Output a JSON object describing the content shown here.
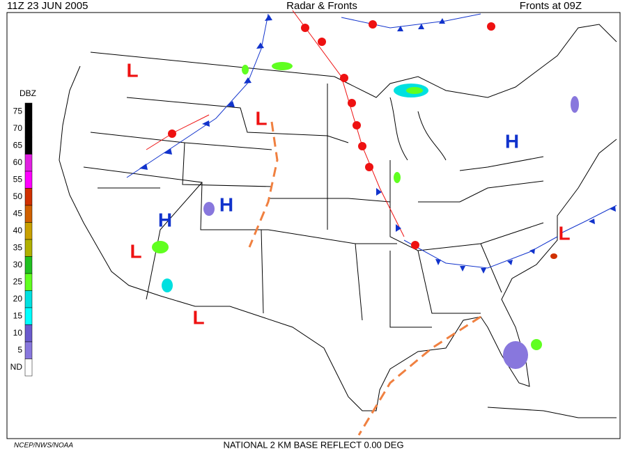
{
  "header": {
    "time": "11Z  23 JUN  2005",
    "title": "Radar & Fronts",
    "fronts_time": "Fronts at 09Z"
  },
  "legend": {
    "title": "DBZ",
    "levels": [
      {
        "label": "75",
        "color": "#000000"
      },
      {
        "label": "70",
        "color": "#000000"
      },
      {
        "label": "65",
        "color": "#000000"
      },
      {
        "label": "60",
        "color": "#e020e0"
      },
      {
        "label": "55",
        "color": "#ff00ff"
      },
      {
        "label": "50",
        "color": "#d03000"
      },
      {
        "label": "45",
        "color": "#d06000"
      },
      {
        "label": "40",
        "color": "#c8a000"
      },
      {
        "label": "35",
        "color": "#b0b000"
      },
      {
        "label": "30",
        "color": "#20c020"
      },
      {
        "label": "25",
        "color": "#60ff20"
      },
      {
        "label": "20",
        "color": "#00e0e0"
      },
      {
        "label": "15",
        "color": "#00ffff"
      },
      {
        "label": "10",
        "color": "#6a5acd"
      },
      {
        "label": "5",
        "color": "#8877dd"
      },
      {
        "label": "ND",
        "color": "#ffffff"
      }
    ]
  },
  "pressure_centers": [
    {
      "label": "L",
      "color": "#ee1111"
    },
    {
      "label": "L",
      "color": "#ee1111"
    },
    {
      "label": "H",
      "color": "#1133cc"
    },
    {
      "label": "H",
      "color": "#1133cc"
    },
    {
      "label": "H",
      "color": "#1133cc"
    },
    {
      "label": "L",
      "color": "#ee1111"
    },
    {
      "label": "L",
      "color": "#ee1111"
    },
    {
      "label": "L",
      "color": "#ee1111"
    }
  ],
  "footer": {
    "credit": "NCEP/NWS/NOAA",
    "product": "NATIONAL 2 KM BASE REFLECT 0.00 DEG"
  }
}
